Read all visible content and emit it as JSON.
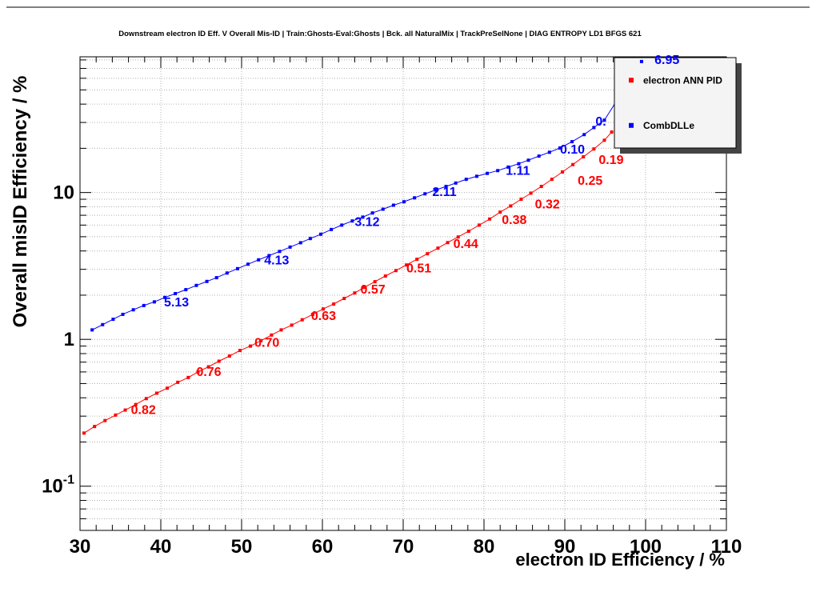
{
  "title": "Downstream electron ID Eff. V Overall Mis-ID | Train:Ghosts-Eval:Ghosts | Bck. all NaturalMix | TrackPreSelNone | DIAG ENTROPY LD1 BFGS 621",
  "canvas": {
    "background": "#ffffff",
    "frame_color": "#000000",
    "grid_color": "#b0b0b0",
    "legend_fill": "#f4f4f4",
    "legend_shadow": "#444444"
  },
  "chart_data": {
    "type": "line",
    "title": "Downstream electron ID Eff. V Overall Mis-ID | Train:Ghosts-Eval:Ghosts | Bck. all NaturalMix | TrackPreSelNone | DIAG ENTROPY LD1 BFGS 621",
    "xlabel": "electron ID Efficiency / %",
    "ylabel": "Overall misID Efficiency / %",
    "x_range": [
      30,
      110
    ],
    "y_range": [
      0.05,
      84
    ],
    "y_scale": "log",
    "grid": true,
    "legend_position": "top-right",
    "x_ticks": [
      30,
      40,
      50,
      60,
      70,
      80,
      90,
      100,
      110
    ],
    "y_ticks": [
      {
        "value": 0.1,
        "base": "10",
        "exp": "-1"
      },
      {
        "value": 1,
        "base": "1",
        "exp": ""
      },
      {
        "value": 10,
        "base": "10",
        "exp": ""
      }
    ],
    "series": [
      {
        "name": "electron ANN PID",
        "color": "#ff0000",
        "marker": "square",
        "points": [
          [
            30.5,
            0.23
          ],
          [
            31.8,
            0.255
          ],
          [
            33.1,
            0.28
          ],
          [
            34.4,
            0.305
          ],
          [
            35.6,
            0.33
          ],
          [
            36.9,
            0.36
          ],
          [
            38.2,
            0.395
          ],
          [
            39.5,
            0.43
          ],
          [
            40.8,
            0.465
          ],
          [
            42.1,
            0.51
          ],
          [
            43.4,
            0.55
          ],
          [
            44.6,
            0.6
          ],
          [
            45.9,
            0.65
          ],
          [
            47.2,
            0.71
          ],
          [
            48.5,
            0.77
          ],
          [
            49.8,
            0.84
          ],
          [
            51.1,
            0.9
          ],
          [
            52.4,
            0.98
          ],
          [
            53.7,
            1.07
          ],
          [
            54.9,
            1.16
          ],
          [
            56.2,
            1.25
          ],
          [
            57.5,
            1.36
          ],
          [
            58.8,
            1.48
          ],
          [
            60.1,
            1.61
          ],
          [
            61.4,
            1.74
          ],
          [
            62.7,
            1.9
          ],
          [
            64.0,
            2.07
          ],
          [
            65.2,
            2.26
          ],
          [
            66.5,
            2.47
          ],
          [
            67.8,
            2.7
          ],
          [
            69.1,
            2.94
          ],
          [
            70.4,
            3.21
          ],
          [
            71.7,
            3.51
          ],
          [
            73.0,
            3.83
          ],
          [
            74.3,
            4.18
          ],
          [
            75.5,
            4.56
          ],
          [
            76.8,
            4.98
          ],
          [
            78.1,
            5.45
          ],
          [
            79.4,
            6.0
          ],
          [
            80.7,
            6.6
          ],
          [
            82.0,
            7.35
          ],
          [
            83.3,
            8.1
          ],
          [
            84.6,
            9.0
          ],
          [
            85.8,
            9.9
          ],
          [
            87.1,
            11.0
          ],
          [
            88.4,
            12.3
          ],
          [
            89.7,
            13.8
          ],
          [
            91.0,
            15.5
          ],
          [
            92.3,
            17.5
          ],
          [
            93.6,
            19.8
          ],
          [
            94.9,
            22.7
          ],
          [
            95.8,
            25.8
          ]
        ],
        "point_labels": [
          {
            "text": "0.82",
            "x": 36.3,
            "y": 0.33
          },
          {
            "text": "0.76",
            "x": 44.4,
            "y": 0.6
          },
          {
            "text": "0.70",
            "x": 51.6,
            "y": 0.95
          },
          {
            "text": "0.63",
            "x": 58.6,
            "y": 1.44
          },
          {
            "text": "0.57",
            "x": 64.7,
            "y": 2.18
          },
          {
            "text": "0.51",
            "x": 70.4,
            "y": 3.05
          },
          {
            "text": "0.44",
            "x": 76.2,
            "y": 4.45
          },
          {
            "text": "0.38",
            "x": 82.2,
            "y": 6.5
          },
          {
            "text": "0.32",
            "x": 86.3,
            "y": 8.3
          },
          {
            "text": "0.25",
            "x": 91.6,
            "y": 12.0
          },
          {
            "text": "0.19",
            "x": 94.2,
            "y": 16.6
          }
        ]
      },
      {
        "name": "CombDLLe",
        "color": "#0000ff",
        "marker": "square",
        "points": [
          [
            31.5,
            1.16
          ],
          [
            32.8,
            1.26
          ],
          [
            34.1,
            1.37
          ],
          [
            35.3,
            1.48
          ],
          [
            36.6,
            1.59
          ],
          [
            37.9,
            1.7
          ],
          [
            39.2,
            1.8
          ],
          [
            40.5,
            1.93
          ],
          [
            41.8,
            2.05
          ],
          [
            43.1,
            2.18
          ],
          [
            44.4,
            2.33
          ],
          [
            45.7,
            2.48
          ],
          [
            46.9,
            2.63
          ],
          [
            48.2,
            2.83
          ],
          [
            49.5,
            3.03
          ],
          [
            50.8,
            3.25
          ],
          [
            52.1,
            3.48
          ],
          [
            53.4,
            3.72
          ],
          [
            54.7,
            3.97
          ],
          [
            56.0,
            4.25
          ],
          [
            57.3,
            4.55
          ],
          [
            58.5,
            4.86
          ],
          [
            59.8,
            5.2
          ],
          [
            61.1,
            5.6
          ],
          [
            62.4,
            6.0
          ],
          [
            63.7,
            6.4
          ],
          [
            65.0,
            6.8
          ],
          [
            66.2,
            7.26
          ],
          [
            67.5,
            7.7
          ],
          [
            68.8,
            8.2
          ],
          [
            70.1,
            8.65
          ],
          [
            71.4,
            9.2
          ],
          [
            72.7,
            9.8
          ],
          [
            74.0,
            10.4
          ],
          [
            75.3,
            11.0
          ],
          [
            76.5,
            11.6
          ],
          [
            77.8,
            12.3
          ],
          [
            79.1,
            12.9
          ],
          [
            80.4,
            13.5
          ],
          [
            81.7,
            14.1
          ],
          [
            83.0,
            14.9
          ],
          [
            84.3,
            15.7
          ],
          [
            85.5,
            16.6
          ],
          [
            86.8,
            17.7
          ],
          [
            88.1,
            18.8
          ],
          [
            89.4,
            20.1
          ],
          [
            90.9,
            22.2
          ],
          [
            92.4,
            24.8
          ],
          [
            93.6,
            27.7
          ],
          [
            94.9,
            31.1
          ],
          [
            99.5,
            78
          ]
        ],
        "point_labels": [
          {
            "text": "5.13",
            "x": 40.4,
            "y": 1.78
          },
          {
            "text": "4.13",
            "x": 52.8,
            "y": 3.46
          },
          {
            "text": "3.12",
            "x": 64.0,
            "y": 6.3
          },
          {
            "text": "2.11",
            "x": 73.6,
            "y": 10.1
          },
          {
            "text": "1.11",
            "x": 82.7,
            "y": 14.1
          },
          {
            "text": "0.10",
            "x": 89.4,
            "y": 19.6
          },
          {
            "text": "0.",
            "x": 93.8,
            "y": 30.5
          },
          {
            "text": "6.95",
            "x": 101.1,
            "y": 80,
            "marker": {
              "x": 99.5,
              "y": 78
            }
          }
        ]
      }
    ]
  },
  "legend": {
    "entries": [
      {
        "label": "electron ANN PID",
        "color": "#ff0000"
      },
      {
        "label": "CombDLLe",
        "color": "#0000ff"
      }
    ]
  }
}
